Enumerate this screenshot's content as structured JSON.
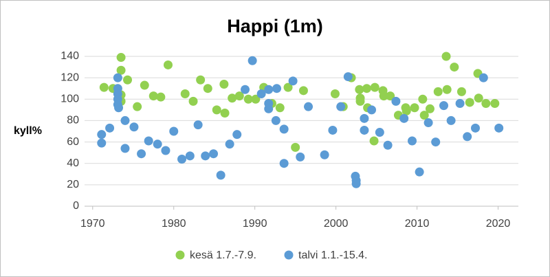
{
  "chart_data": {
    "type": "scatter",
    "title": "Happi (1m)",
    "y_label": "kyll%",
    "xlim": [
      1969,
      2022.5
    ],
    "xticks": [
      1970,
      1980,
      1990,
      2000,
      2010,
      2020
    ],
    "ylim": [
      0,
      140
    ],
    "yticks": [
      0,
      20,
      40,
      60,
      80,
      100,
      120,
      140
    ],
    "grid": true,
    "legend": "bottom",
    "series": [
      {
        "name": "kesä 1.7.-7.9.",
        "color": "#92d050",
        "x": [
          1971.4,
          1972.5,
          1973.5,
          1973.5,
          1973.5,
          1973.5,
          1974.3,
          1975.5,
          1976.4,
          1977.5,
          1978.4,
          1979.3,
          1981.4,
          1982.4,
          1983.3,
          1984.2,
          1985.3,
          1986.2,
          1986.3,
          1987.2,
          1988.1,
          1989.2,
          1990.1,
          1991.1,
          1992.1,
          1993.1,
          1994.1,
          1995.0,
          1996.0,
          1999.9,
          2000.9,
          2001.9,
          2002.9,
          2003.0,
          2003.0,
          2003.8,
          2003.9,
          2004.7,
          2004.8,
          2005.8,
          2005.9,
          2006.7,
          2007.7,
          2008.6,
          2008.7,
          2009.7,
          2010.7,
          2010.9,
          2011.6,
          2012.6,
          2013.6,
          2013.7,
          2014.6,
          2015.5,
          2016.5,
          2017.5,
          2017.6,
          2018.5,
          2019.6
        ],
        "values": [
          111,
          110,
          139,
          127,
          104,
          98,
          118,
          93,
          113,
          103,
          102,
          132,
          105,
          98,
          118,
          110,
          90,
          114,
          87,
          101,
          103,
          100,
          100,
          111,
          96,
          92,
          111,
          55,
          108,
          105,
          93,
          120,
          109,
          98,
          101,
          110,
          92,
          61,
          111,
          108,
          103,
          103,
          85,
          92,
          89,
          92,
          100,
          85,
          91,
          107,
          140,
          109,
          130,
          107,
          97,
          124,
          101,
          96,
          96
        ]
      },
      {
        "name": "talvi 1.1.-15.4.",
        "color": "#5b9bd5",
        "x": [
          1971.1,
          1971.1,
          1972.1,
          1973.1,
          1973.1,
          1973.1,
          1973.1,
          1973.1,
          1973.2,
          1974.0,
          1974.0,
          1975.1,
          1976.0,
          1976.9,
          1978.0,
          1979.0,
          1980.0,
          1981.0,
          1982.0,
          1983.0,
          1983.9,
          1984.9,
          1985.8,
          1986.9,
          1987.8,
          1988.8,
          1989.7,
          1990.8,
          1991.7,
          1991.7,
          1991.7,
          1992.6,
          1992.7,
          1993.6,
          1993.6,
          1994.7,
          1995.6,
          1996.6,
          1998.6,
          1999.6,
          2000.6,
          2001.5,
          2002.4,
          2002.5,
          2002.5,
          2003.5,
          2003.5,
          2004.4,
          2005.4,
          2006.4,
          2007.4,
          2008.4,
          2009.4,
          2010.3,
          2011.4,
          2012.3,
          2013.3,
          2014.2,
          2015.3,
          2016.2,
          2017.2,
          2018.2,
          2020.1
        ],
        "values": [
          67,
          59,
          73,
          120,
          110,
          105,
          100,
          95,
          92,
          80,
          54,
          74,
          49,
          61,
          58,
          52,
          70,
          44,
          47,
          76,
          47,
          49,
          29,
          58,
          67,
          109,
          136,
          105,
          109,
          96,
          91,
          80,
          110,
          72,
          40,
          117,
          46,
          93,
          48,
          71,
          93,
          121,
          28,
          24,
          21,
          82,
          71,
          90,
          69,
          57,
          98,
          82,
          61,
          32,
          78,
          60,
          94,
          80,
          96,
          65,
          73,
          120,
          73
        ]
      }
    ]
  }
}
